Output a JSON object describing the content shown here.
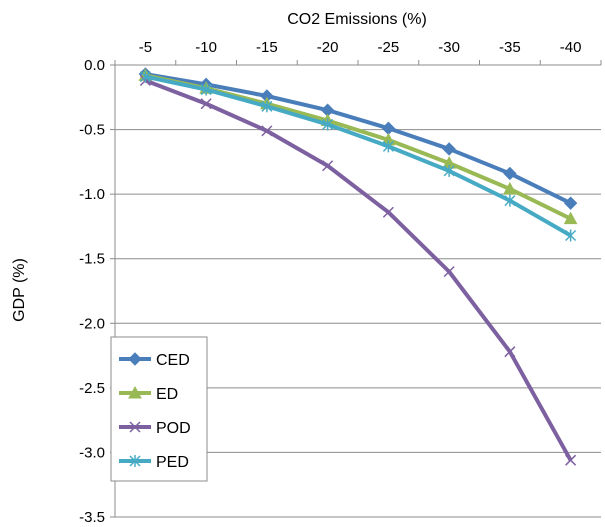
{
  "chart_data": {
    "type": "line",
    "x_axis_position": "top",
    "xlabel": "CO2 Emissions (%)",
    "ylabel": "GDP (%)",
    "categories": [
      "-5",
      "-10",
      "-15",
      "-20",
      "-25",
      "-30",
      "-35",
      "-40"
    ],
    "ylim": [
      -3.5,
      0.0
    ],
    "yticks": [
      0.0,
      -0.5,
      -1.0,
      -1.5,
      -2.0,
      -2.5,
      -3.0,
      -3.5
    ],
    "ytick_labels": [
      "0.0",
      "-0.5",
      "-1.0",
      "-1.5",
      "-2.0",
      "-2.5",
      "-3.0",
      "-3.5"
    ],
    "grid": "horizontal",
    "legend_position": "bottom-left",
    "series": [
      {
        "name": "CED",
        "color": "#4a7ebb",
        "marker": "diamond",
        "values": [
          -0.07,
          -0.15,
          -0.24,
          -0.35,
          -0.49,
          -0.65,
          -0.84,
          -1.07
        ]
      },
      {
        "name": "ED",
        "color": "#98b954",
        "marker": "triangle",
        "values": [
          -0.08,
          -0.18,
          -0.3,
          -0.43,
          -0.58,
          -0.76,
          -0.96,
          -1.19
        ]
      },
      {
        "name": "POD",
        "color": "#7d60a0",
        "marker": "x",
        "values": [
          -0.12,
          -0.3,
          -0.51,
          -0.78,
          -1.14,
          -1.6,
          -2.22,
          -3.06
        ]
      },
      {
        "name": "PED",
        "color": "#46aac5",
        "marker": "star",
        "values": [
          -0.09,
          -0.19,
          -0.32,
          -0.46,
          -0.63,
          -0.82,
          -1.05,
          -1.32
        ]
      }
    ]
  }
}
